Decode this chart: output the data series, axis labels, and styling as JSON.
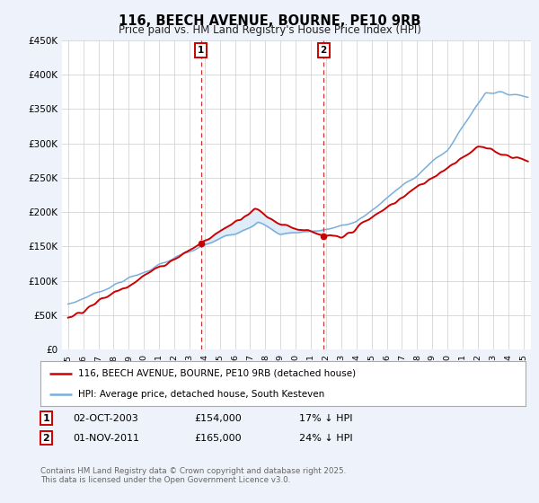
{
  "title": "116, BEECH AVENUE, BOURNE, PE10 9RB",
  "subtitle": "Price paid vs. HM Land Registry's House Price Index (HPI)",
  "ylabel_ticks": [
    "£0",
    "£50K",
    "£100K",
    "£150K",
    "£200K",
    "£250K",
    "£300K",
    "£350K",
    "£400K",
    "£450K"
  ],
  "ylim": [
    0,
    450000
  ],
  "xlim_start": 1994.6,
  "xlim_end": 2025.5,
  "sale1_date": 2003.75,
  "sale1_price": 154000,
  "sale1_label": "02-OCT-2003",
  "sale1_amount": "£154,000",
  "sale1_note": "17% ↓ HPI",
  "sale2_date": 2011.83,
  "sale2_price": 165000,
  "sale2_label": "01-NOV-2011",
  "sale2_amount": "£165,000",
  "sale2_note": "24% ↓ HPI",
  "red_color": "#cc0000",
  "blue_color": "#7aaddb",
  "blue_fill": "#daeaf7",
  "vline_color": "#cc3333",
  "legend_line1": "116, BEECH AVENUE, BOURNE, PE10 9RB (detached house)",
  "legend_line2": "HPI: Average price, detached house, South Kesteven",
  "footnote": "Contains HM Land Registry data © Crown copyright and database right 2025.\nThis data is licensed under the Open Government Licence v3.0.",
  "background_color": "#eef2fb",
  "plot_bg": "#ffffff",
  "title_fontsize": 10.5,
  "subtitle_fontsize": 8.5
}
